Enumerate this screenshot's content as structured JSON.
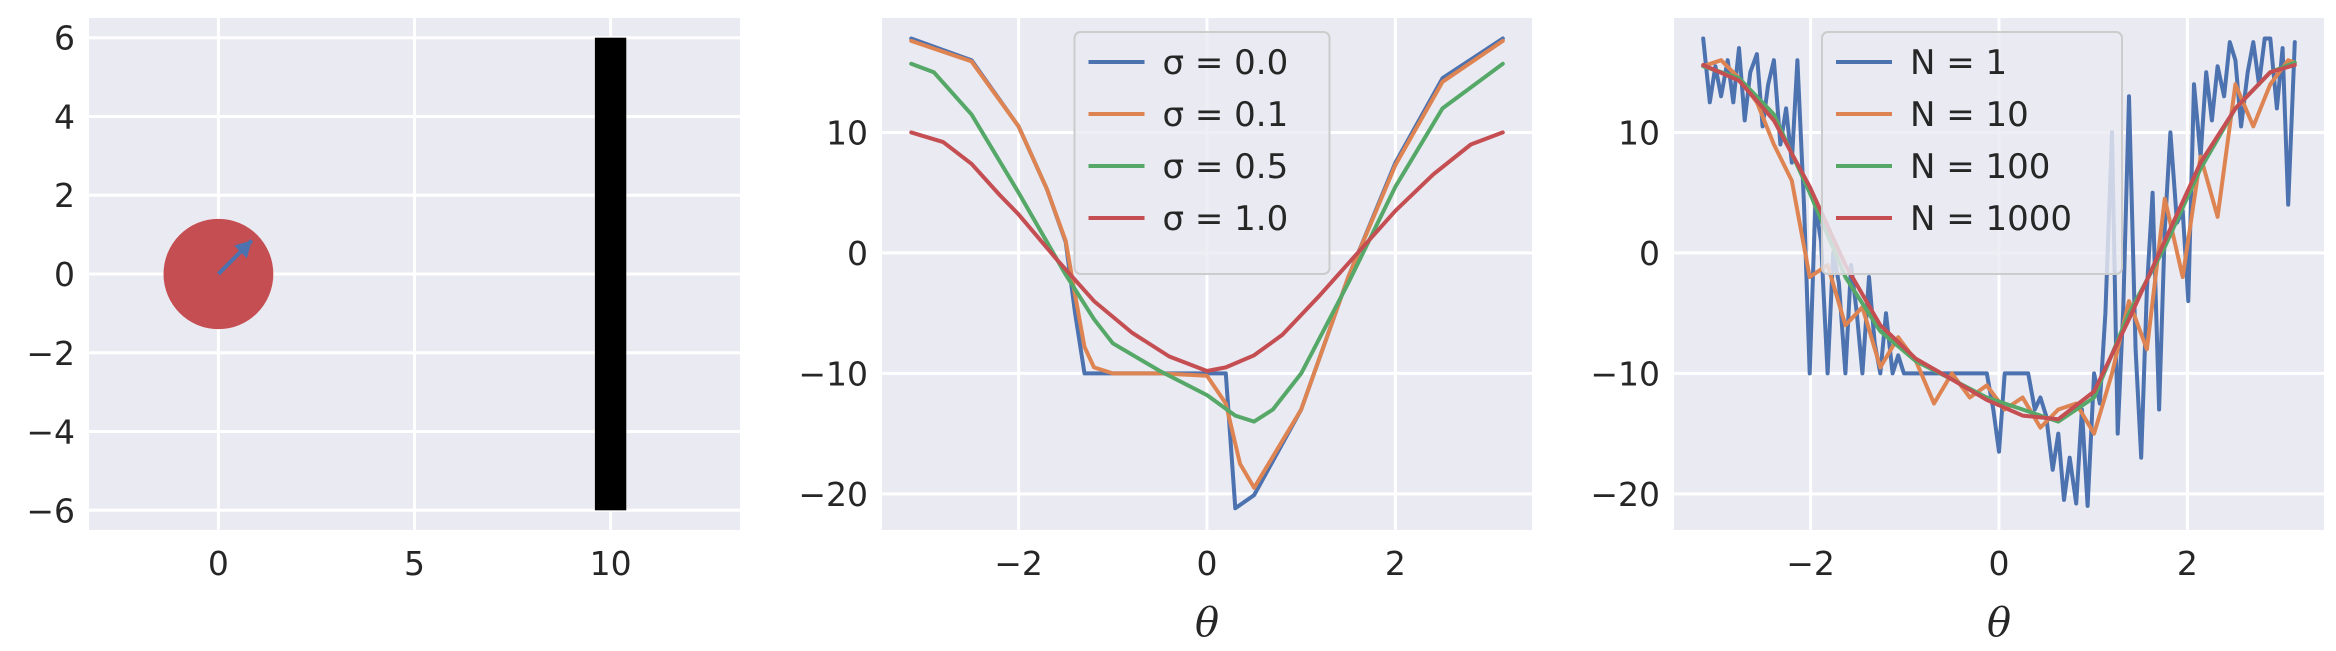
{
  "colors": {
    "panel_bg": "#EAEAF2",
    "grid": "#FFFFFF",
    "blue": "#4C72B0",
    "orange": "#DD8452",
    "green": "#55A868",
    "red": "#C44E52",
    "ball": "#D62728",
    "wall": "#000000"
  },
  "chart_data": [
    {
      "type": "scatter",
      "title": "",
      "xlabel": "",
      "ylabel": "",
      "xlim": [
        -3.3,
        13.3
      ],
      "ylim": [
        -6.5,
        6.5
      ],
      "grid": true,
      "xticks": [
        0,
        5,
        10
      ],
      "xtick_labels": [
        "0",
        "5",
        "10"
      ],
      "yticks": [
        -6,
        -4,
        -2,
        0,
        2,
        4,
        6
      ],
      "ytick_labels": [
        "−6",
        "−4",
        "−2",
        "0",
        "2",
        "4",
        "6"
      ],
      "ball": {
        "center": [
          0,
          0
        ],
        "radius": 1.4,
        "color": "red"
      },
      "arrow": {
        "from": [
          0,
          0
        ],
        "to": [
          0.85,
          0.85
        ],
        "color": "blue"
      },
      "wall": {
        "x": [
          9.6,
          10.4
        ],
        "y": [
          -6,
          6
        ],
        "color": "black"
      }
    },
    {
      "type": "line",
      "title": "",
      "xlabel": "θ",
      "ylabel": "",
      "xlim": [
        -3.45,
        3.45
      ],
      "ylim": [
        -23,
        19.5
      ],
      "grid": true,
      "xticks": [
        -2,
        0,
        2
      ],
      "xtick_labels": [
        "−2",
        "0",
        "2"
      ],
      "yticks": [
        -20,
        -10,
        0,
        10
      ],
      "ytick_labels": [
        "−20",
        "−10",
        "0",
        "10"
      ],
      "legend_position": "top-center",
      "series": [
        {
          "name": "σ = 0.0",
          "color": "blue",
          "x": [
            -3.14,
            -2.5,
            -2.0,
            -1.7,
            -1.5,
            -1.4,
            -1.3,
            -1.0,
            -0.5,
            0.0,
            0.2,
            0.3,
            0.5,
            1.0,
            1.5,
            2.0,
            2.5,
            3.14
          ],
          "y": [
            17.8,
            16.0,
            10.5,
            5.3,
            0.9,
            -5.0,
            -10.0,
            -10.0,
            -10.0,
            -10.0,
            -10.0,
            -21.2,
            -20.1,
            -13.0,
            -2.0,
            7.5,
            14.5,
            17.8
          ]
        },
        {
          "name": "σ = 0.1",
          "color": "orange",
          "x": [
            -3.14,
            -2.5,
            -2.0,
            -1.7,
            -1.5,
            -1.4,
            -1.3,
            -1.2,
            -1.0,
            -0.5,
            0.0,
            0.2,
            0.35,
            0.5,
            1.0,
            1.5,
            2.0,
            2.5,
            3.14
          ],
          "y": [
            17.6,
            15.9,
            10.5,
            5.3,
            1.0,
            -3.5,
            -7.8,
            -9.5,
            -10.0,
            -10.0,
            -10.2,
            -12.5,
            -17.5,
            -19.5,
            -13.0,
            -2.0,
            7.3,
            14.2,
            17.6
          ]
        },
        {
          "name": "σ = 0.5",
          "color": "green",
          "x": [
            -3.14,
            -2.9,
            -2.5,
            -2.0,
            -1.5,
            -1.2,
            -1.0,
            -0.5,
            0.0,
            0.3,
            0.5,
            0.7,
            1.0,
            1.5,
            2.0,
            2.5,
            3.14
          ],
          "y": [
            15.7,
            15.0,
            11.5,
            5.0,
            -1.8,
            -5.5,
            -7.5,
            -9.8,
            -11.8,
            -13.5,
            -14.0,
            -13.0,
            -10.0,
            -2.5,
            5.5,
            12.0,
            15.7
          ]
        },
        {
          "name": "σ = 1.0",
          "color": "red",
          "x": [
            -3.14,
            -2.8,
            -2.5,
            -2.2,
            -2.0,
            -1.6,
            -1.2,
            -0.8,
            -0.4,
            0.0,
            0.2,
            0.5,
            0.8,
            1.2,
            1.6,
            2.0,
            2.4,
            2.8,
            3.14
          ],
          "y": [
            10.0,
            9.2,
            7.4,
            4.8,
            3.2,
            -0.5,
            -4.0,
            -6.6,
            -8.6,
            -9.8,
            -9.5,
            -8.5,
            -6.8,
            -3.5,
            0.0,
            3.5,
            6.5,
            9.0,
            10.0
          ]
        }
      ]
    },
    {
      "type": "line",
      "title": "",
      "xlabel": "θ",
      "ylabel": "",
      "xlim": [
        -3.45,
        3.45
      ],
      "ylim": [
        -23,
        19.5
      ],
      "grid": true,
      "xticks": [
        -2,
        0,
        2
      ],
      "xtick_labels": [
        "−2",
        "0",
        "2"
      ],
      "yticks": [
        -20,
        -10,
        0,
        10
      ],
      "ytick_labels": [
        "−20",
        "−10",
        "0",
        "10"
      ],
      "legend_position": "top-center",
      "series": [
        {
          "name": "N = 1",
          "color": "blue",
          "x": [
            -3.14,
            -3.07,
            -3.01,
            -2.95,
            -2.88,
            -2.82,
            -2.76,
            -2.7,
            -2.64,
            -2.57,
            -2.51,
            -2.45,
            -2.39,
            -2.32,
            -2.26,
            -2.2,
            -2.14,
            -2.07,
            -2.01,
            -1.95,
            -1.89,
            -1.82,
            -1.76,
            -1.7,
            -1.63,
            -1.57,
            -1.51,
            -1.45,
            -1.38,
            -1.32,
            -1.26,
            -1.2,
            -1.13,
            -1.07,
            -1.01,
            -0.94,
            -0.88,
            -0.82,
            -0.75,
            -0.69,
            -0.63,
            -0.57,
            -0.5,
            -0.44,
            -0.38,
            -0.31,
            -0.25,
            -0.19,
            -0.13,
            -0.06,
            0.0,
            0.06,
            0.13,
            0.19,
            0.25,
            0.31,
            0.38,
            0.44,
            0.5,
            0.57,
            0.63,
            0.69,
            0.75,
            0.82,
            0.88,
            0.94,
            1.01,
            1.07,
            1.13,
            1.2,
            1.26,
            1.32,
            1.38,
            1.45,
            1.51,
            1.57,
            1.63,
            1.7,
            1.76,
            1.82,
            1.89,
            1.95,
            2.01,
            2.07,
            2.14,
            2.2,
            2.26,
            2.32,
            2.39,
            2.45,
            2.51,
            2.57,
            2.64,
            2.7,
            2.76,
            2.82,
            2.88,
            2.95,
            3.01,
            3.07,
            3.14
          ],
          "y": [
            17.8,
            12.5,
            15.5,
            13.0,
            16.0,
            12.5,
            17.0,
            11.0,
            15.0,
            16.5,
            10.5,
            14.0,
            16.0,
            9.0,
            12.0,
            7.5,
            16.0,
            4.0,
            -10.0,
            4.0,
            1.0,
            -10.0,
            0.0,
            -2.5,
            -10.0,
            -1.0,
            -5.0,
            -10.0,
            -2.0,
            -7.5,
            -10.0,
            -5.0,
            -10.0,
            -8.5,
            -10.0,
            -10.0,
            -10.0,
            -10.0,
            -10.0,
            -10.0,
            -10.0,
            -10.0,
            -10.0,
            -10.0,
            -10.0,
            -10.0,
            -10.0,
            -10.0,
            -10.0,
            -13.0,
            -16.5,
            -10.0,
            -10.0,
            -10.0,
            -10.0,
            -10.0,
            -13.0,
            -12.0,
            -13.5,
            -18.0,
            -15.0,
            -20.5,
            -17.0,
            -20.8,
            -13.0,
            -21.0,
            -10.0,
            -12.5,
            -5.0,
            10.0,
            -15.0,
            -4.5,
            13.0,
            -8.0,
            -17.0,
            -3.0,
            5.0,
            -13.0,
            2.0,
            10.0,
            2.5,
            3.5,
            -4.0,
            14.0,
            8.0,
            15.0,
            11.0,
            15.5,
            13.0,
            17.5,
            16.0,
            10.5,
            15.0,
            17.5,
            14.0,
            17.8,
            17.8,
            12.0,
            17.0,
            4.0,
            17.5
          ]
        },
        {
          "name": "N = 10",
          "color": "orange",
          "x": [
            -3.14,
            -2.95,
            -2.76,
            -2.57,
            -2.39,
            -2.2,
            -2.01,
            -1.82,
            -1.63,
            -1.45,
            -1.26,
            -1.07,
            -0.88,
            -0.69,
            -0.5,
            -0.31,
            -0.13,
            0.06,
            0.25,
            0.44,
            0.63,
            0.82,
            1.01,
            1.2,
            1.38,
            1.57,
            1.76,
            1.95,
            2.14,
            2.32,
            2.51,
            2.7,
            2.88,
            3.07,
            3.14
          ],
          "y": [
            15.5,
            16.0,
            14.5,
            12.5,
            9.0,
            6.0,
            -2.0,
            -1.0,
            -6.0,
            -4.5,
            -9.5,
            -7.0,
            -9.0,
            -12.5,
            -10.0,
            -12.0,
            -11.0,
            -13.0,
            -12.0,
            -14.5,
            -13.0,
            -12.5,
            -15.0,
            -10.0,
            -4.0,
            -8.0,
            4.5,
            -2.0,
            8.0,
            3.0,
            14.0,
            10.5,
            14.0,
            16.0,
            15.8
          ]
        },
        {
          "name": "N = 100",
          "color": "green",
          "x": [
            -3.14,
            -2.76,
            -2.39,
            -2.01,
            -1.63,
            -1.26,
            -0.88,
            -0.5,
            -0.13,
            0.25,
            0.63,
            1.01,
            1.38,
            1.76,
            2.14,
            2.51,
            2.88,
            3.14
          ],
          "y": [
            15.5,
            14.5,
            11.5,
            5.0,
            -2.0,
            -6.5,
            -9.0,
            -10.5,
            -12.0,
            -13.0,
            -14.0,
            -12.0,
            -5.0,
            0.5,
            7.0,
            12.0,
            15.0,
            15.8
          ]
        },
        {
          "name": "N = 1000",
          "color": "red",
          "x": [
            -3.14,
            -2.76,
            -2.39,
            -2.01,
            -1.63,
            -1.26,
            -0.88,
            -0.5,
            -0.13,
            0.25,
            0.63,
            1.01,
            1.38,
            1.76,
            2.14,
            2.51,
            2.88,
            3.14
          ],
          "y": [
            15.6,
            14.3,
            11.0,
            5.5,
            -1.0,
            -6.0,
            -8.8,
            -10.5,
            -12.2,
            -13.5,
            -13.8,
            -11.5,
            -5.5,
            1.0,
            7.5,
            12.0,
            15.0,
            15.6
          ]
        }
      ]
    }
  ]
}
